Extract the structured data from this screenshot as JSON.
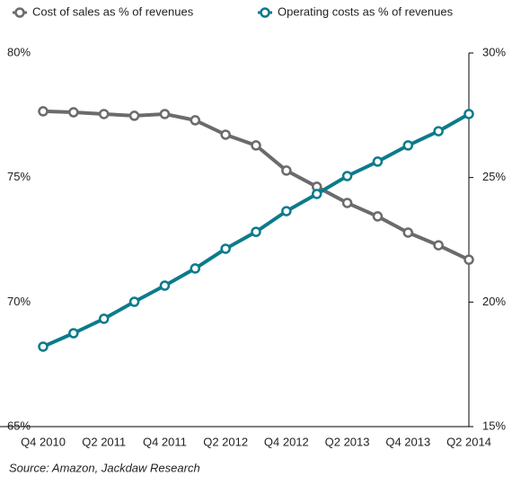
{
  "chart_data": {
    "type": "line",
    "categories": [
      "Q4 2010",
      null,
      "Q2 2011",
      null,
      "Q4 2011",
      null,
      "Q2 2012",
      null,
      "Q4 2012",
      null,
      "Q2 2013",
      null,
      "Q4 2013",
      null,
      "Q2 2014"
    ],
    "series": [
      {
        "name": "Cost of sales as % of revenues",
        "color": "#6b6b6b",
        "axis": "y",
        "values": [
          77.66,
          77.62,
          77.55,
          77.48,
          77.55,
          77.3,
          76.72,
          76.29,
          75.28,
          74.63,
          73.98,
          73.44,
          72.79,
          72.28,
          71.7
        ]
      },
      {
        "name": "Operating costs as % of revenues",
        "color": "#0b7b8b",
        "axis": "y2",
        "values": [
          18.21,
          18.75,
          19.33,
          20.01,
          20.66,
          21.35,
          22.14,
          22.82,
          23.65,
          24.34,
          25.06,
          25.64,
          26.29,
          26.86,
          27.55
        ]
      }
    ],
    "ylim": [
      65,
      80
    ],
    "yticks": [
      {
        "value": 65,
        "label": "65%"
      },
      {
        "value": 70,
        "label": "70%"
      },
      {
        "value": 75,
        "label": "75%"
      },
      {
        "value": 80,
        "label": "80%"
      }
    ],
    "y2lim": [
      15,
      30
    ],
    "y2ticks": [
      {
        "value": 15,
        "label": "15%"
      },
      {
        "value": 20,
        "label": "20%"
      },
      {
        "value": 25,
        "label": "25%"
      },
      {
        "value": 30,
        "label": "30%"
      }
    ],
    "source": "Source: Amazon, Jackdaw Research"
  }
}
